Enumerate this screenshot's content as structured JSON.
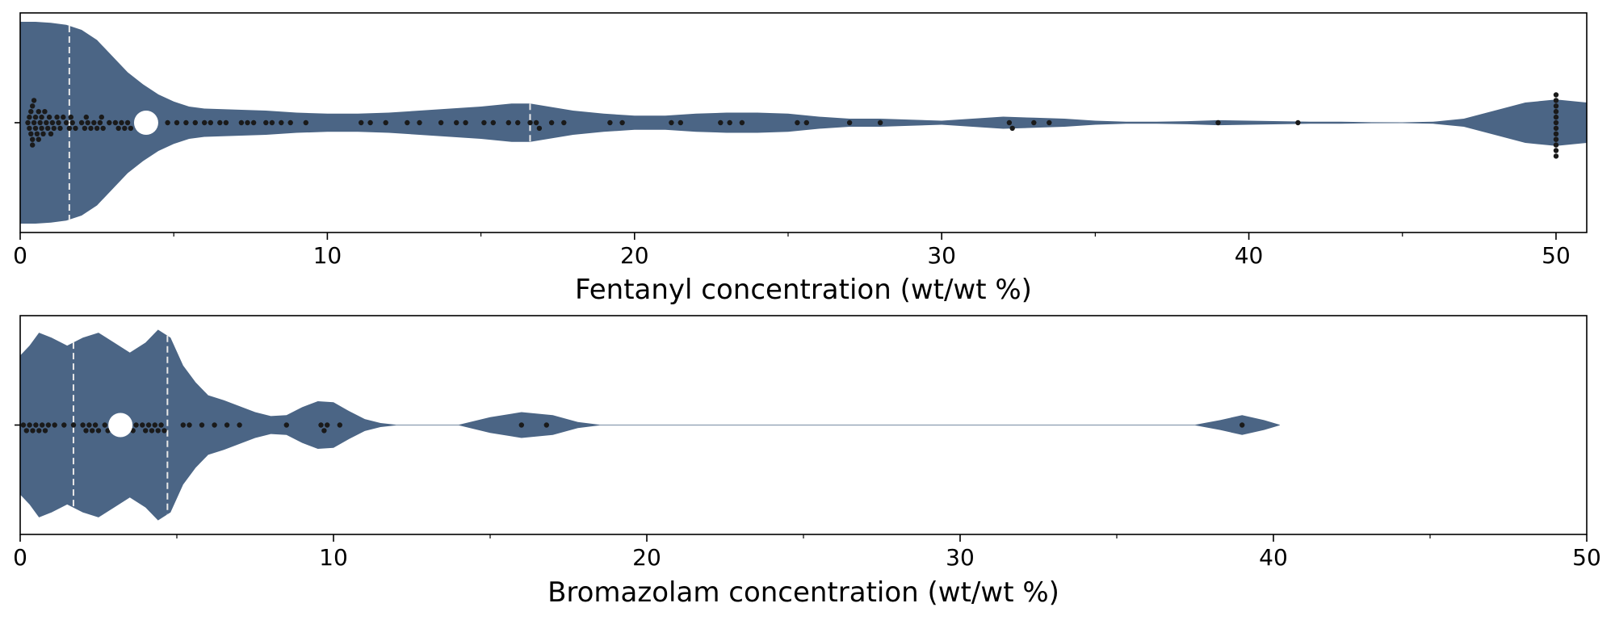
{
  "chart_data": [
    {
      "type": "violin",
      "xlabel": "Fentanyl concentration (wt/wt %)",
      "xlim": [
        0,
        51
      ],
      "major_ticks": [
        0,
        10,
        20,
        30,
        40,
        50
      ],
      "minor_ticks": [
        5,
        15,
        25,
        35,
        45
      ],
      "tick_labels": [
        "0",
        "10",
        "20",
        "30",
        "40",
        "50"
      ],
      "colors": {
        "violin": "#4b6585",
        "points": "#1a1a1a",
        "median": "#ffffff",
        "quartile_lines": "#e8e8e8"
      },
      "median": 4.1,
      "quartiles": [
        1.6,
        16.6
      ],
      "density_profile": [
        [
          0,
          1.0
        ],
        [
          0.5,
          1.0
        ],
        [
          1.0,
          0.99
        ],
        [
          1.5,
          0.97
        ],
        [
          2.0,
          0.92
        ],
        [
          2.5,
          0.82
        ],
        [
          3.0,
          0.66
        ],
        [
          3.5,
          0.5
        ],
        [
          4.0,
          0.38
        ],
        [
          4.5,
          0.28
        ],
        [
          5.0,
          0.21
        ],
        [
          5.5,
          0.16
        ],
        [
          6.0,
          0.14
        ],
        [
          7.0,
          0.13
        ],
        [
          8.0,
          0.12
        ],
        [
          9.0,
          0.1
        ],
        [
          10.0,
          0.09
        ],
        [
          11.0,
          0.09
        ],
        [
          12.0,
          0.1
        ],
        [
          13.0,
          0.12
        ],
        [
          14.0,
          0.14
        ],
        [
          15.0,
          0.16
        ],
        [
          16.0,
          0.19
        ],
        [
          16.6,
          0.19
        ],
        [
          17.0,
          0.17
        ],
        [
          18.0,
          0.12
        ],
        [
          19.0,
          0.09
        ],
        [
          20.0,
          0.07
        ],
        [
          21.0,
          0.07
        ],
        [
          22.0,
          0.09
        ],
        [
          23.0,
          0.1
        ],
        [
          24.0,
          0.1
        ],
        [
          25.0,
          0.09
        ],
        [
          26.0,
          0.06
        ],
        [
          27.0,
          0.04
        ],
        [
          28.0,
          0.04
        ],
        [
          29.0,
          0.03
        ],
        [
          30.0,
          0.02
        ],
        [
          31.0,
          0.04
        ],
        [
          32.0,
          0.06
        ],
        [
          33.0,
          0.05
        ],
        [
          34.0,
          0.04
        ],
        [
          35.0,
          0.02
        ],
        [
          36.0,
          0.01
        ],
        [
          37.0,
          0.01
        ],
        [
          38.0,
          0.015
        ],
        [
          39.0,
          0.025
        ],
        [
          40.0,
          0.02
        ],
        [
          41.0,
          0.015
        ],
        [
          42.0,
          0.01
        ],
        [
          43.0,
          0.01
        ],
        [
          44.0,
          0.005
        ],
        [
          45.0,
          0.004
        ],
        [
          46.0,
          0.01
        ],
        [
          47.0,
          0.04
        ],
        [
          48.0,
          0.12
        ],
        [
          49.0,
          0.2
        ],
        [
          50.0,
          0.23
        ],
        [
          51.0,
          0.2
        ]
      ],
      "points": [
        0.25,
        0.3,
        0.3,
        0.35,
        0.35,
        0.4,
        0.4,
        0.4,
        0.45,
        0.45,
        0.5,
        0.5,
        0.55,
        0.6,
        0.6,
        0.65,
        0.7,
        0.7,
        0.75,
        0.8,
        0.85,
        0.9,
        0.95,
        1.0,
        1.05,
        1.1,
        1.2,
        1.25,
        1.3,
        1.4,
        1.5,
        1.6,
        1.65,
        1.7,
        1.8,
        2.0,
        2.1,
        2.15,
        2.2,
        2.3,
        2.4,
        2.5,
        2.6,
        2.65,
        2.7,
        2.9,
        3.1,
        3.2,
        3.3,
        3.4,
        3.5,
        3.6,
        3.9,
        4.0,
        4.1,
        4.3,
        4.8,
        5.1,
        5.4,
        5.7,
        6.0,
        6.2,
        6.5,
        6.7,
        7.2,
        7.4,
        7.6,
        8.0,
        8.2,
        8.5,
        8.8,
        9.3,
        11.1,
        11.4,
        11.9,
        12.6,
        13.0,
        13.7,
        14.2,
        14.5,
        15.1,
        15.4,
        15.9,
        16.2,
        16.6,
        16.8,
        16.9,
        17.3,
        17.7,
        19.2,
        19.6,
        21.2,
        21.5,
        22.8,
        23.1,
        23.5,
        25.3,
        25.6,
        27.0,
        28.0,
        32.2,
        32.3,
        33.0,
        33.5,
        39.0,
        41.6,
        50,
        50,
        50,
        50,
        50,
        50,
        50,
        50,
        50,
        50,
        50,
        50
      ]
    },
    {
      "type": "violin",
      "xlabel": "Bromazolam concentration (wt/wt %)",
      "xlim": [
        0,
        50
      ],
      "major_ticks": [
        0,
        10,
        20,
        30,
        40,
        50
      ],
      "minor_ticks": [
        5,
        15,
        25,
        35,
        45
      ],
      "tick_labels": [
        "0",
        "10",
        "20",
        "30",
        "40",
        "50"
      ],
      "colors": {
        "violin": "#4b6585",
        "points": "#1a1a1a",
        "median": "#ffffff",
        "quartile_lines": "#e8e8e8"
      },
      "median": 3.2,
      "quartiles": [
        1.7,
        4.7
      ],
      "density_profile": [
        [
          0,
          0.7
        ],
        [
          0.3,
          0.8
        ],
        [
          0.6,
          0.93
        ],
        [
          1.0,
          0.88
        ],
        [
          1.5,
          0.8
        ],
        [
          2.0,
          0.88
        ],
        [
          2.5,
          0.93
        ],
        [
          3.0,
          0.83
        ],
        [
          3.5,
          0.73
        ],
        [
          4.0,
          0.83
        ],
        [
          4.4,
          0.96
        ],
        [
          4.8,
          0.88
        ],
        [
          5.2,
          0.6
        ],
        [
          5.6,
          0.43
        ],
        [
          6.0,
          0.3
        ],
        [
          6.5,
          0.25
        ],
        [
          7.0,
          0.19
        ],
        [
          7.5,
          0.13
        ],
        [
          8.0,
          0.09
        ],
        [
          8.5,
          0.1
        ],
        [
          9.0,
          0.18
        ],
        [
          9.5,
          0.24
        ],
        [
          10.0,
          0.23
        ],
        [
          10.5,
          0.14
        ],
        [
          11.0,
          0.06
        ],
        [
          11.5,
          0.02
        ],
        [
          12.0,
          0.003
        ],
        [
          14.0,
          0.003
        ],
        [
          15.0,
          0.08
        ],
        [
          16.0,
          0.13
        ],
        [
          17.0,
          0.1
        ],
        [
          17.8,
          0.03
        ],
        [
          18.5,
          0.003
        ],
        [
          37.5,
          0.003
        ],
        [
          38.3,
          0.05
        ],
        [
          39.0,
          0.1
        ],
        [
          39.7,
          0.05
        ],
        [
          40.2,
          0.003
        ]
      ],
      "points": [
        0.1,
        0.2,
        0.3,
        0.4,
        0.5,
        0.6,
        0.7,
        0.8,
        0.9,
        1.1,
        1.4,
        1.7,
        2.0,
        2.1,
        2.2,
        2.3,
        2.4,
        2.5,
        2.7,
        2.8,
        2.9,
        3.0,
        3.0,
        3.1,
        3.2,
        3.5,
        3.6,
        3.7,
        3.9,
        4.0,
        4.1,
        4.2,
        4.3,
        4.4,
        4.5,
        4.6,
        5.2,
        5.4,
        5.8,
        6.2,
        6.6,
        7.0,
        8.5,
        9.6,
        9.7,
        9.8,
        10.2,
        16.0,
        16.8,
        39.0
      ]
    }
  ]
}
